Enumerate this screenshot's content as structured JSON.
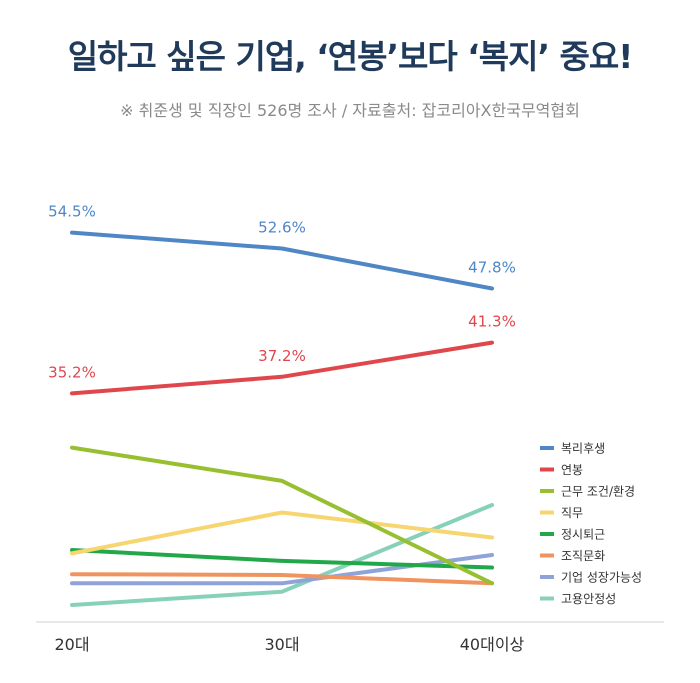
{
  "title": "일하고 싶은 기업, ‘연봉’보다 ‘복지’ 중요!",
  "subtitle": "※ 취준생 및 직장인 526명 조사 / 자료출처: 잡코리아X한국무역협회",
  "chart_data": {
    "type": "line",
    "title": "일하고 싶은 기업, ‘연봉’보다 ‘복지’ 중요!",
    "categories": [
      "20대",
      "30대",
      "40대이상"
    ],
    "series": [
      {
        "name": "복리후생",
        "values": [
          54.5,
          52.6,
          47.8
        ],
        "color": "#4f86c6",
        "labels": [
          "54.5%",
          "52.6%",
          "47.8%"
        ]
      },
      {
        "name": "연봉",
        "values": [
          35.2,
          37.2,
          41.3
        ],
        "color": "#e0474c",
        "labels": [
          "35.2%",
          "37.2%",
          "41.3%"
        ]
      },
      {
        "name": "근무 조건/환경",
        "values": [
          28.7,
          24.7,
          12.4
        ],
        "color": "#98bf2f"
      },
      {
        "name": "직무",
        "values": [
          16.0,
          20.9,
          17.9
        ],
        "color": "#f7d571"
      },
      {
        "name": "정시퇴근",
        "values": [
          16.4,
          15.1,
          14.3
        ],
        "color": "#22a84a"
      },
      {
        "name": "조직문화",
        "values": [
          13.5,
          13.4,
          12.4
        ],
        "color": "#f0945f"
      },
      {
        "name": "기업 성장가능성",
        "values": [
          12.4,
          12.4,
          15.8
        ],
        "color": "#8fa3d8"
      },
      {
        "name": "고용안정성",
        "values": [
          9.8,
          11.4,
          21.8
        ],
        "color": "#88d1b9"
      }
    ],
    "legend_position": "right",
    "grid": false
  }
}
